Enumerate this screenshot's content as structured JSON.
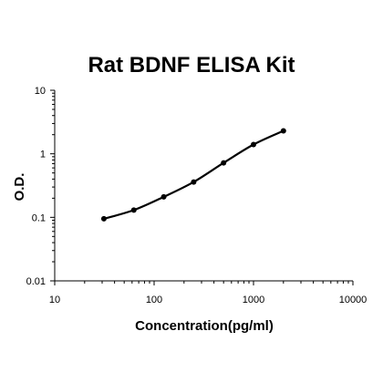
{
  "chart_data": {
    "type": "line",
    "title": "Rat BDNF ELISA Kit",
    "xlabel": "Concentration(pg/ml)",
    "ylabel": "O.D.",
    "x_scale": "log",
    "y_scale": "log",
    "xlim": [
      10,
      10000
    ],
    "ylim": [
      0.01,
      10
    ],
    "x_ticks": [
      "10",
      "100",
      "1000",
      "10000"
    ],
    "y_ticks": [
      "0.01",
      "0.1",
      "1",
      "10"
    ],
    "grid": false,
    "legend": "none",
    "series": [
      {
        "color": "#000000",
        "x": [
          31.25,
          62.5,
          125,
          250,
          500,
          1000,
          2000
        ],
        "y": [
          0.095,
          0.13,
          0.21,
          0.36,
          0.72,
          1.4,
          2.3
        ]
      }
    ]
  }
}
